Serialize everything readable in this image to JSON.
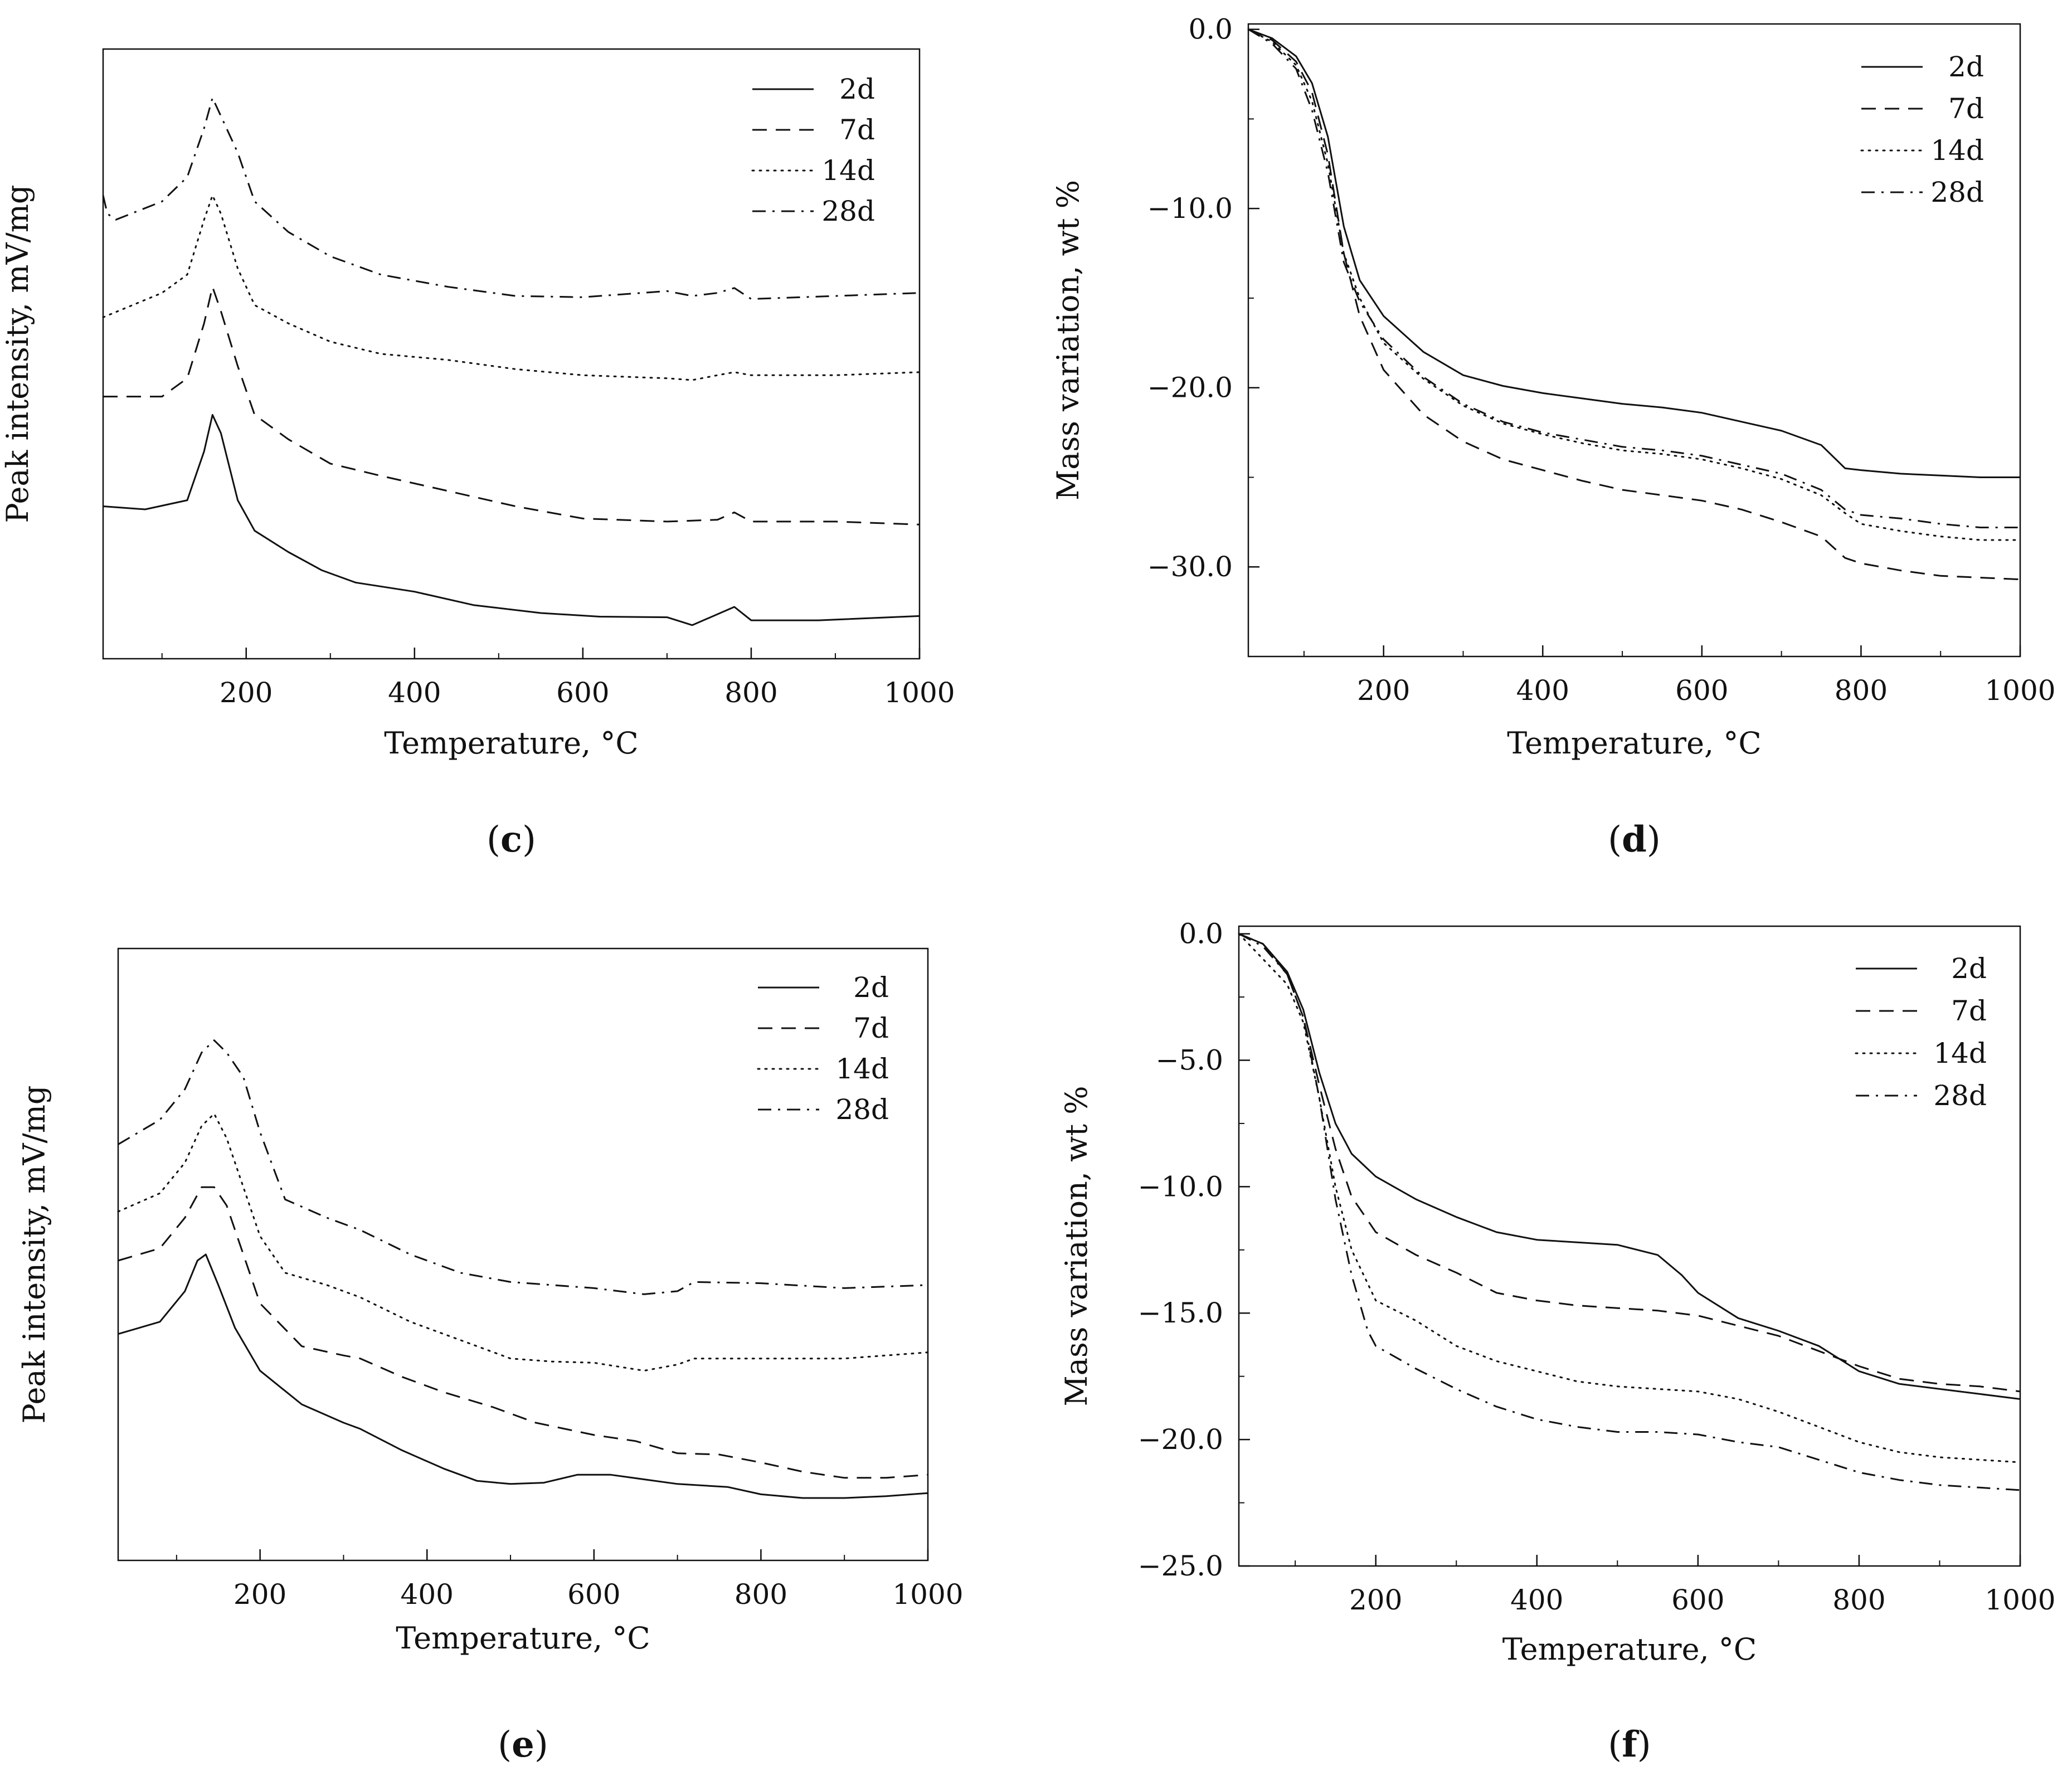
{
  "figure": {
    "colors": {
      "ink": "#111111",
      "background": "#ffffff"
    },
    "legend_styles": {
      "2d": "solid",
      "7d": "dashed",
      "14d": "dotted",
      "28d": "dash-dot"
    }
  },
  "chart_data": [
    {
      "id": "c",
      "caption": "c",
      "type": "line",
      "title": "",
      "xlabel": "Temperature, °C",
      "ylabel": "Peak intensity, mV/mg",
      "xlim": [
        30,
        1000
      ],
      "ylim": [
        0,
        100
      ],
      "xticks": [
        200,
        400,
        600,
        800,
        1000
      ],
      "xtick_labels": [
        "200",
        "400",
        "600",
        "800",
        "1000"
      ],
      "yticks": [],
      "ytick_labels": [],
      "legend_position": "top-right",
      "series": [
        {
          "name": "2d",
          "style": "solid",
          "x": [
            30,
            80,
            130,
            150,
            160,
            170,
            190,
            210,
            250,
            290,
            330,
            400,
            470,
            550,
            620,
            700,
            730,
            760,
            780,
            800,
            880,
            1000
          ],
          "y": [
            25,
            24.5,
            26,
            34,
            40,
            37,
            26,
            21,
            17.5,
            14.5,
            12.5,
            11,
            8.8,
            7.5,
            6.9,
            6.8,
            5.5,
            7.3,
            8.5,
            6.3,
            6.3,
            7
          ]
        },
        {
          "name": "7d",
          "style": "dashed",
          "x": [
            30,
            100,
            130,
            150,
            160,
            170,
            190,
            210,
            250,
            300,
            360,
            440,
            520,
            600,
            700,
            760,
            780,
            800,
            900,
            1000
          ],
          "y": [
            43,
            43,
            46,
            55,
            61,
            57,
            48,
            40,
            36,
            32,
            30,
            27.5,
            25,
            23,
            22.5,
            22.8,
            24,
            22.5,
            22.5,
            22
          ]
        },
        {
          "name": "14d",
          "style": "dotted",
          "x": [
            30,
            100,
            130,
            150,
            160,
            170,
            190,
            210,
            250,
            300,
            360,
            440,
            520,
            600,
            700,
            730,
            760,
            780,
            800,
            900,
            1000
          ],
          "y": [
            56,
            60,
            63,
            72,
            76,
            73,
            64,
            58,
            55,
            52,
            50,
            49,
            47.5,
            46.5,
            46,
            45.7,
            46.5,
            47,
            46.5,
            46.5,
            47
          ]
        },
        {
          "name": "28d",
          "style": "dash-dot",
          "x": [
            30,
            35,
            45,
            100,
            130,
            150,
            160,
            170,
            190,
            210,
            250,
            300,
            360,
            440,
            520,
            600,
            700,
            730,
            760,
            780,
            800,
            900,
            1000
          ],
          "y": [
            76,
            73,
            72,
            75,
            79,
            87,
            92,
            89,
            83,
            75,
            70,
            66,
            63,
            61,
            59.5,
            59.3,
            60.3,
            59.5,
            60,
            60.8,
            59,
            59.5,
            60
          ]
        }
      ]
    },
    {
      "id": "d",
      "caption": "d",
      "type": "line",
      "title": "",
      "xlabel": "Temperature, °C",
      "ylabel": "Mass variation, wt %",
      "xlim": [
        30,
        1000
      ],
      "ylim": [
        -35,
        0.3
      ],
      "xticks": [
        200,
        400,
        600,
        800,
        1000
      ],
      "xtick_labels": [
        "200",
        "400",
        "600",
        "800",
        "1000"
      ],
      "yticks": [
        0,
        -10,
        -20,
        -30
      ],
      "ytick_labels": [
        "0.0",
        "−10.0",
        "−20.0",
        "−30.0"
      ],
      "legend_position": "top-right",
      "series": [
        {
          "name": "2d",
          "style": "solid",
          "x": [
            30,
            60,
            90,
            110,
            130,
            150,
            170,
            200,
            250,
            300,
            350,
            400,
            450,
            500,
            550,
            600,
            650,
            700,
            750,
            780,
            800,
            850,
            900,
            950,
            1000
          ],
          "y": [
            0,
            -0.5,
            -1.5,
            -3,
            -6,
            -11,
            -14,
            -16,
            -18,
            -19.3,
            -19.9,
            -20.3,
            -20.6,
            -20.9,
            -21.1,
            -21.4,
            -21.9,
            -22.4,
            -23.2,
            -24.5,
            -24.6,
            -24.8,
            -24.9,
            -25,
            -25
          ]
        },
        {
          "name": "7d",
          "style": "dashed",
          "x": [
            30,
            60,
            90,
            110,
            130,
            150,
            170,
            200,
            250,
            300,
            350,
            400,
            450,
            500,
            550,
            600,
            650,
            700,
            750,
            780,
            800,
            850,
            900,
            950,
            1000
          ],
          "y": [
            0,
            -0.6,
            -1.8,
            -3.5,
            -7,
            -12.5,
            -16,
            -19,
            -21.5,
            -23,
            -24,
            -24.6,
            -25.2,
            -25.7,
            -26,
            -26.3,
            -26.8,
            -27.5,
            -28.3,
            -29.5,
            -29.8,
            -30.2,
            -30.5,
            -30.6,
            -30.7
          ]
        },
        {
          "name": "14d",
          "style": "dotted",
          "x": [
            30,
            60,
            90,
            110,
            130,
            150,
            170,
            200,
            250,
            300,
            350,
            400,
            450,
            500,
            550,
            600,
            650,
            700,
            750,
            780,
            800,
            850,
            900,
            950,
            1000
          ],
          "y": [
            0,
            -0.7,
            -2,
            -4,
            -7.5,
            -12.5,
            -15,
            -17.5,
            -19.5,
            -21,
            -22,
            -22.6,
            -23.1,
            -23.5,
            -23.7,
            -24,
            -24.5,
            -25.1,
            -26,
            -27,
            -27.6,
            -28,
            -28.3,
            -28.5,
            -28.5
          ]
        },
        {
          "name": "28d",
          "style": "dash-dot",
          "x": [
            30,
            60,
            90,
            110,
            130,
            150,
            170,
            200,
            250,
            300,
            350,
            400,
            450,
            500,
            550,
            600,
            650,
            700,
            750,
            780,
            800,
            850,
            900,
            950,
            1000
          ],
          "y": [
            0,
            -0.8,
            -2.2,
            -4.5,
            -8,
            -13,
            -15.2,
            -17.3,
            -19.4,
            -20.9,
            -21.9,
            -22.5,
            -22.9,
            -23.3,
            -23.5,
            -23.8,
            -24.3,
            -24.8,
            -25.7,
            -26.8,
            -27.1,
            -27.3,
            -27.6,
            -27.8,
            -27.8
          ]
        }
      ]
    },
    {
      "id": "e",
      "caption": "e",
      "type": "line",
      "title": "",
      "xlabel": "Temperature, °C",
      "ylabel": "Peak intensity, mV/mg",
      "xlim": [
        30,
        1000
      ],
      "ylim": [
        0,
        100
      ],
      "xticks": [
        200,
        400,
        600,
        800,
        1000
      ],
      "xtick_labels": [
        "200",
        "400",
        "600",
        "800",
        "1000"
      ],
      "yticks": [],
      "ytick_labels": [],
      "legend_position": "top-right",
      "series": [
        {
          "name": "2d",
          "style": "solid",
          "x": [
            30,
            80,
            110,
            125,
            135,
            150,
            170,
            200,
            250,
            300,
            320,
            370,
            420,
            460,
            500,
            540,
            580,
            620,
            700,
            760,
            800,
            850,
            900,
            950,
            1000
          ],
          "y": [
            37,
            39,
            44,
            49,
            50,
            45,
            38,
            31,
            25.5,
            22.5,
            21.5,
            18,
            15,
            13,
            12.5,
            12.7,
            14,
            14,
            12.5,
            12,
            10.8,
            10.2,
            10.2,
            10.5,
            11
          ]
        },
        {
          "name": "7d",
          "style": "dashed",
          "x": [
            30,
            80,
            110,
            130,
            145,
            160,
            180,
            200,
            250,
            300,
            320,
            370,
            420,
            480,
            530,
            600,
            650,
            700,
            750,
            800,
            850,
            900,
            950,
            1000
          ],
          "y": [
            49,
            51,
            56,
            61,
            61,
            58,
            50,
            42,
            35,
            33.5,
            33,
            30,
            27.5,
            25,
            22.5,
            20.5,
            19.5,
            17.5,
            17.3,
            16,
            14.5,
            13.5,
            13.5,
            14
          ]
        },
        {
          "name": "14d",
          "style": "dotted",
          "x": [
            30,
            80,
            110,
            130,
            145,
            160,
            180,
            200,
            230,
            280,
            320,
            380,
            440,
            500,
            550,
            600,
            660,
            700,
            720,
            800,
            900,
            1000
          ],
          "y": [
            57,
            60,
            65,
            71,
            73,
            69,
            61,
            53,
            47,
            45,
            43,
            39,
            36,
            33,
            32.5,
            32.3,
            31,
            32,
            33,
            33,
            33,
            34
          ]
        },
        {
          "name": "28d",
          "style": "dash-dot",
          "x": [
            30,
            80,
            110,
            130,
            145,
            160,
            180,
            200,
            230,
            280,
            320,
            380,
            440,
            500,
            550,
            600,
            660,
            700,
            720,
            800,
            900,
            1000
          ],
          "y": [
            68,
            72,
            77,
            83,
            85,
            83,
            79,
            70,
            59,
            56,
            54,
            50,
            47,
            45.5,
            45,
            44.5,
            43.5,
            44,
            45.5,
            45.3,
            44.5,
            45
          ]
        }
      ]
    },
    {
      "id": "f",
      "caption": "f",
      "type": "line",
      "title": "",
      "xlabel": "Temperature, °C",
      "ylabel": "Mass variation, wt %",
      "xlim": [
        30,
        1000
      ],
      "ylim": [
        -25,
        0.3
      ],
      "xticks": [
        200,
        400,
        600,
        800,
        1000
      ],
      "xtick_labels": [
        "200",
        "400",
        "600",
        "800",
        "1000"
      ],
      "yticks": [
        0,
        -5,
        -10,
        -15,
        -20,
        -25
      ],
      "ytick_labels": [
        "0.0",
        "−5.0",
        "−10.0",
        "−15.0",
        "−20.0",
        "−25.0"
      ],
      "legend_position": "top-right",
      "series": [
        {
          "name": "2d",
          "style": "solid",
          "x": [
            30,
            60,
            90,
            110,
            130,
            150,
            170,
            200,
            250,
            300,
            350,
            400,
            450,
            500,
            550,
            580,
            600,
            650,
            700,
            750,
            800,
            850,
            900,
            950,
            1000
          ],
          "y": [
            0,
            -0.4,
            -1.5,
            -3,
            -5.5,
            -7.5,
            -8.7,
            -9.6,
            -10.5,
            -11.2,
            -11.8,
            -12.1,
            -12.2,
            -12.3,
            -12.7,
            -13.5,
            -14.2,
            -15.2,
            -15.7,
            -16.3,
            -17.3,
            -17.8,
            -18,
            -18.2,
            -18.4
          ]
        },
        {
          "name": "7d",
          "style": "dashed",
          "x": [
            30,
            60,
            90,
            110,
            130,
            150,
            170,
            200,
            250,
            300,
            350,
            400,
            450,
            500,
            550,
            600,
            650,
            700,
            750,
            800,
            850,
            900,
            950,
            1000
          ],
          "y": [
            0,
            -0.4,
            -1.6,
            -3.3,
            -6,
            -8.5,
            -10.4,
            -11.8,
            -12.7,
            -13.4,
            -14.2,
            -14.5,
            -14.7,
            -14.8,
            -14.9,
            -15.1,
            -15.5,
            -15.9,
            -16.5,
            -17.1,
            -17.6,
            -17.8,
            -17.9,
            -18.1
          ]
        },
        {
          "name": "14d",
          "style": "dotted",
          "x": [
            30,
            60,
            90,
            110,
            130,
            150,
            170,
            200,
            250,
            300,
            350,
            400,
            450,
            500,
            550,
            600,
            650,
            700,
            750,
            800,
            850,
            900,
            950,
            1000
          ],
          "y": [
            0,
            -1,
            -2,
            -3.5,
            -6.5,
            -10,
            -12.5,
            -14.5,
            -15.3,
            -16.3,
            -16.9,
            -17.3,
            -17.7,
            -17.9,
            -18,
            -18.1,
            -18.4,
            -18.9,
            -19.5,
            -20.1,
            -20.5,
            -20.7,
            -20.8,
            -20.9
          ]
        },
        {
          "name": "28d",
          "style": "dash-dot",
          "x": [
            30,
            60,
            90,
            110,
            130,
            150,
            170,
            190,
            200,
            250,
            300,
            350,
            400,
            450,
            500,
            550,
            600,
            650,
            700,
            750,
            800,
            850,
            900,
            950,
            1000
          ],
          "y": [
            0,
            -0.5,
            -1.6,
            -3.3,
            -6.5,
            -10.5,
            -13.5,
            -15.7,
            -16.3,
            -17.2,
            -18,
            -18.7,
            -19.2,
            -19.5,
            -19.7,
            -19.7,
            -19.8,
            -20.1,
            -20.3,
            -20.8,
            -21.3,
            -21.6,
            -21.8,
            -21.9,
            -22
          ]
        }
      ]
    }
  ]
}
